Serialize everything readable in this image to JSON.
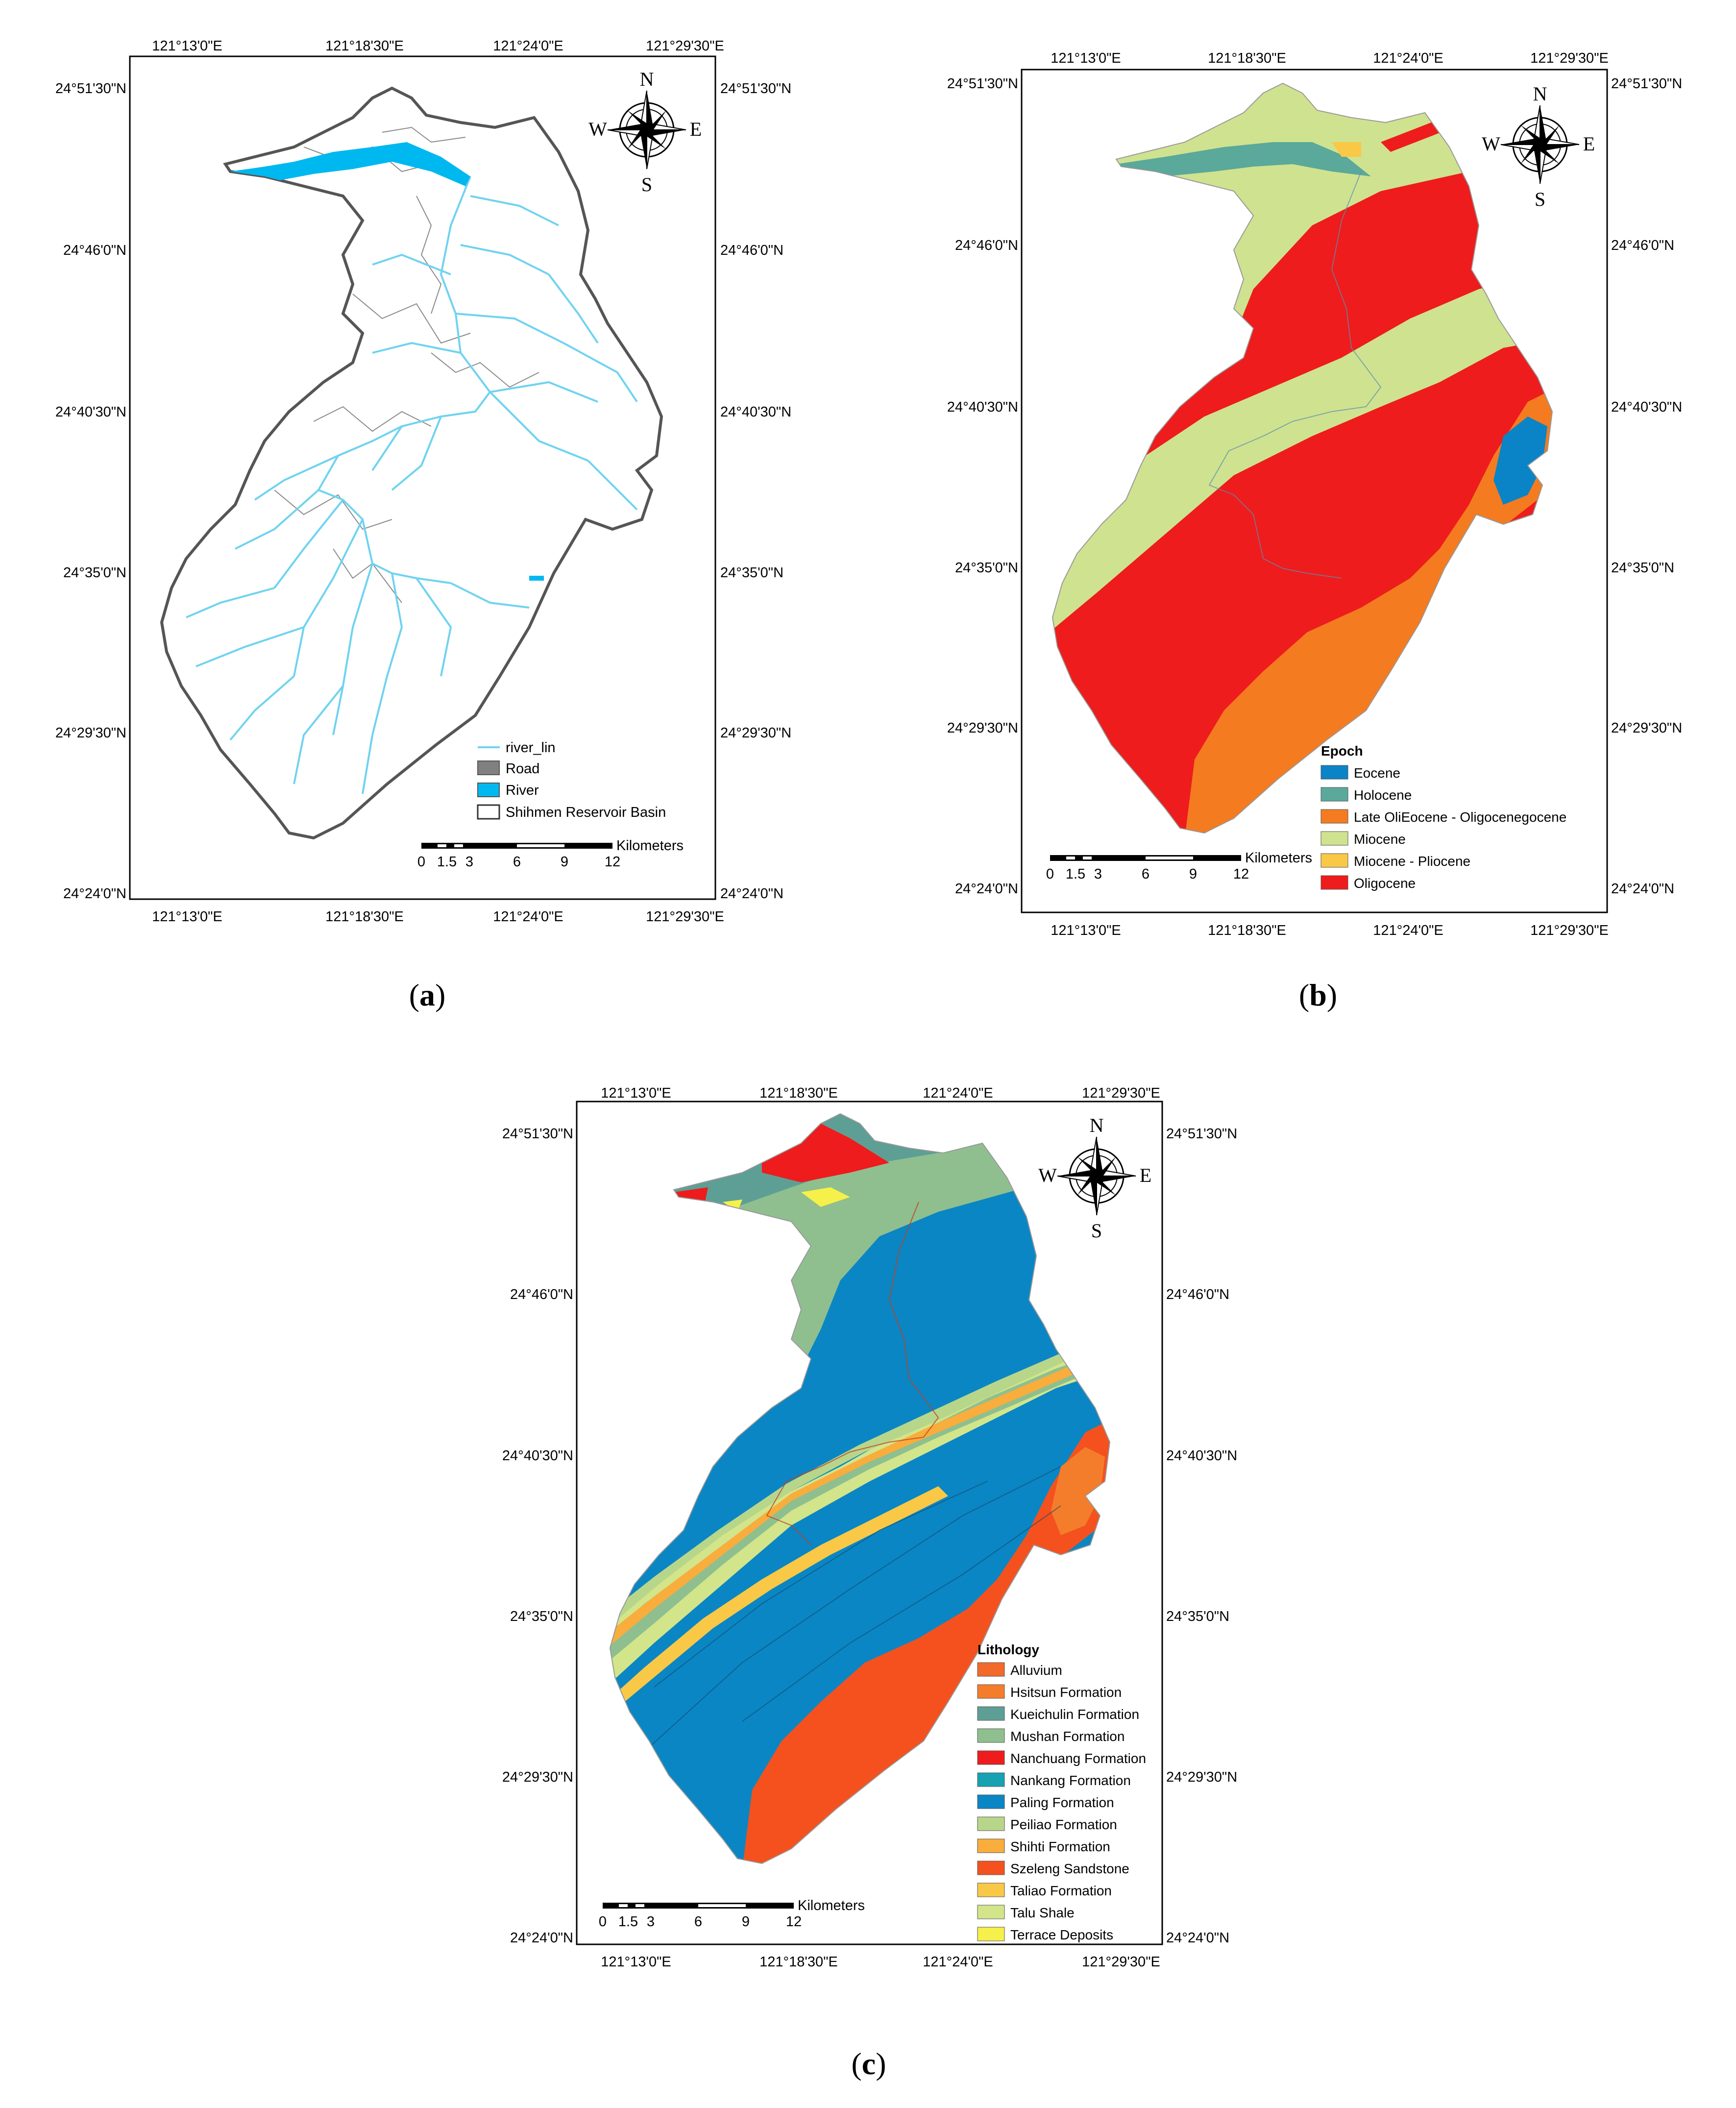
{
  "panels": {
    "a": {
      "caption_open": "(",
      "caption_letter": "a",
      "caption_close": ")",
      "top_lon": [
        "121°13'0\"E",
        "121°18'30\"E",
        "121°24'0\"E",
        "121°29'30\"E"
      ],
      "bottom_lon": [
        "121°13'0\"E",
        "121°18'30\"E",
        "121°24'0\"E",
        "121°29'30\"E"
      ],
      "left_lat": [
        "24°51'30\"N",
        "24°46'0\"N",
        "24°40'30\"N",
        "24°35'0\"N",
        "24°29'30\"N",
        "24°24'0\"N"
      ],
      "right_lat": [
        "24°51'30\"N",
        "24°46'0\"N",
        "24°40'30\"N",
        "24°35'0\"N",
        "24°29'30\"N",
        "24°24'0\"N"
      ],
      "legend": [
        {
          "label": "river_lin",
          "swatch": "line",
          "color": "#6fd3f0"
        },
        {
          "label": "Road",
          "swatch": "box",
          "color": "#808080"
        },
        {
          "label": "River",
          "swatch": "box",
          "color": "#00b8f0"
        },
        {
          "label": "Shihmen Reservoir Basin",
          "swatch": "box",
          "color": "#ffffff"
        }
      ],
      "scale_unit": "Kilometers",
      "scale_ticks": [
        "0",
        "1.5",
        "3",
        "6",
        "9",
        "12"
      ]
    },
    "b": {
      "caption_open": "(",
      "caption_letter": "b",
      "caption_close": ")",
      "top_lon": [
        "121°13'0\"E",
        "121°18'30\"E",
        "121°24'0\"E",
        "121°29'30\"E"
      ],
      "bottom_lon": [
        "121°13'0\"E",
        "121°18'30\"E",
        "121°24'0\"E",
        "121°29'30\"E"
      ],
      "left_lat": [
        "24°51'30\"N",
        "24°46'0\"N",
        "24°40'30\"N",
        "24°35'0\"N",
        "24°29'30\"N",
        "24°24'0\"N"
      ],
      "right_lat": [
        "24°51'30\"N",
        "24°46'0\"N",
        "24°40'30\"N",
        "24°35'0\"N",
        "24°29'30\"N",
        "24°24'0\"N"
      ],
      "legend_title": "Epoch",
      "legend": [
        {
          "label": "Eocene",
          "color": "#0a84c6"
        },
        {
          "label": "Holocene",
          "color": "#5aa99a"
        },
        {
          "label": "Late OliEocene - Oligocenegocene",
          "color": "#f47b20"
        },
        {
          "label": "Miocene",
          "color": "#cfe28f"
        },
        {
          "label": "Miocene - Pliocene",
          "color": "#f9c847"
        },
        {
          "label": "Oligocene",
          "color": "#ee1c1c"
        }
      ],
      "scale_unit": "Kilometers",
      "scale_ticks": [
        "0",
        "1.5",
        "3",
        "6",
        "9",
        "12"
      ]
    },
    "c": {
      "caption_open": "(",
      "caption_letter": "c",
      "caption_close": ")",
      "top_lon": [
        "121°13'0\"E",
        "121°18'30\"E",
        "121°24'0\"E",
        "121°29'30\"E"
      ],
      "bottom_lon": [
        "121°13'0\"E",
        "121°18'30\"E",
        "121°24'0\"E",
        "121°29'30\"E"
      ],
      "left_lat": [
        "24°51'30\"N",
        "24°46'0\"N",
        "24°40'30\"N",
        "24°35'0\"N",
        "24°29'30\"N",
        "24°24'0\"N"
      ],
      "right_lat": [
        "24°51'30\"N",
        "24°46'0\"N",
        "24°40'30\"N",
        "24°35'0\"N",
        "24°29'30\"N",
        "24°24'0\"N"
      ],
      "legend_title": "Lithology",
      "legend": [
        {
          "label": "Alluvium",
          "color": "#f2692a"
        },
        {
          "label": "Hsitsun Formation",
          "color": "#f47d2c"
        },
        {
          "label": "Kueichulin Formation",
          "color": "#5e9f95"
        },
        {
          "label": "Mushan Formation",
          "color": "#8fbf8f"
        },
        {
          "label": "Nanchuang Formation",
          "color": "#ee1c1c"
        },
        {
          "label": "Nankang Formation",
          "color": "#16a2b2"
        },
        {
          "label": "Paling Formation",
          "color": "#0a86c4"
        },
        {
          "label": "Peiliao Formation",
          "color": "#b8d68a"
        },
        {
          "label": "Shihti Formation",
          "color": "#f8ad3c"
        },
        {
          "label": "Szeleng Sandstone",
          "color": "#f4511e"
        },
        {
          "label": "Taliao Formation",
          "color": "#f9c847"
        },
        {
          "label": "Talu Shale",
          "color": "#d2e58a"
        },
        {
          "label": "Terrace Deposits",
          "color": "#f6f04a"
        }
      ],
      "scale_unit": "Kilometers",
      "scale_ticks": [
        "0",
        "1.5",
        "3",
        "6",
        "9",
        "12"
      ]
    }
  },
  "compass": {
    "n": "N",
    "s": "S",
    "e": "E",
    "w": "W"
  }
}
